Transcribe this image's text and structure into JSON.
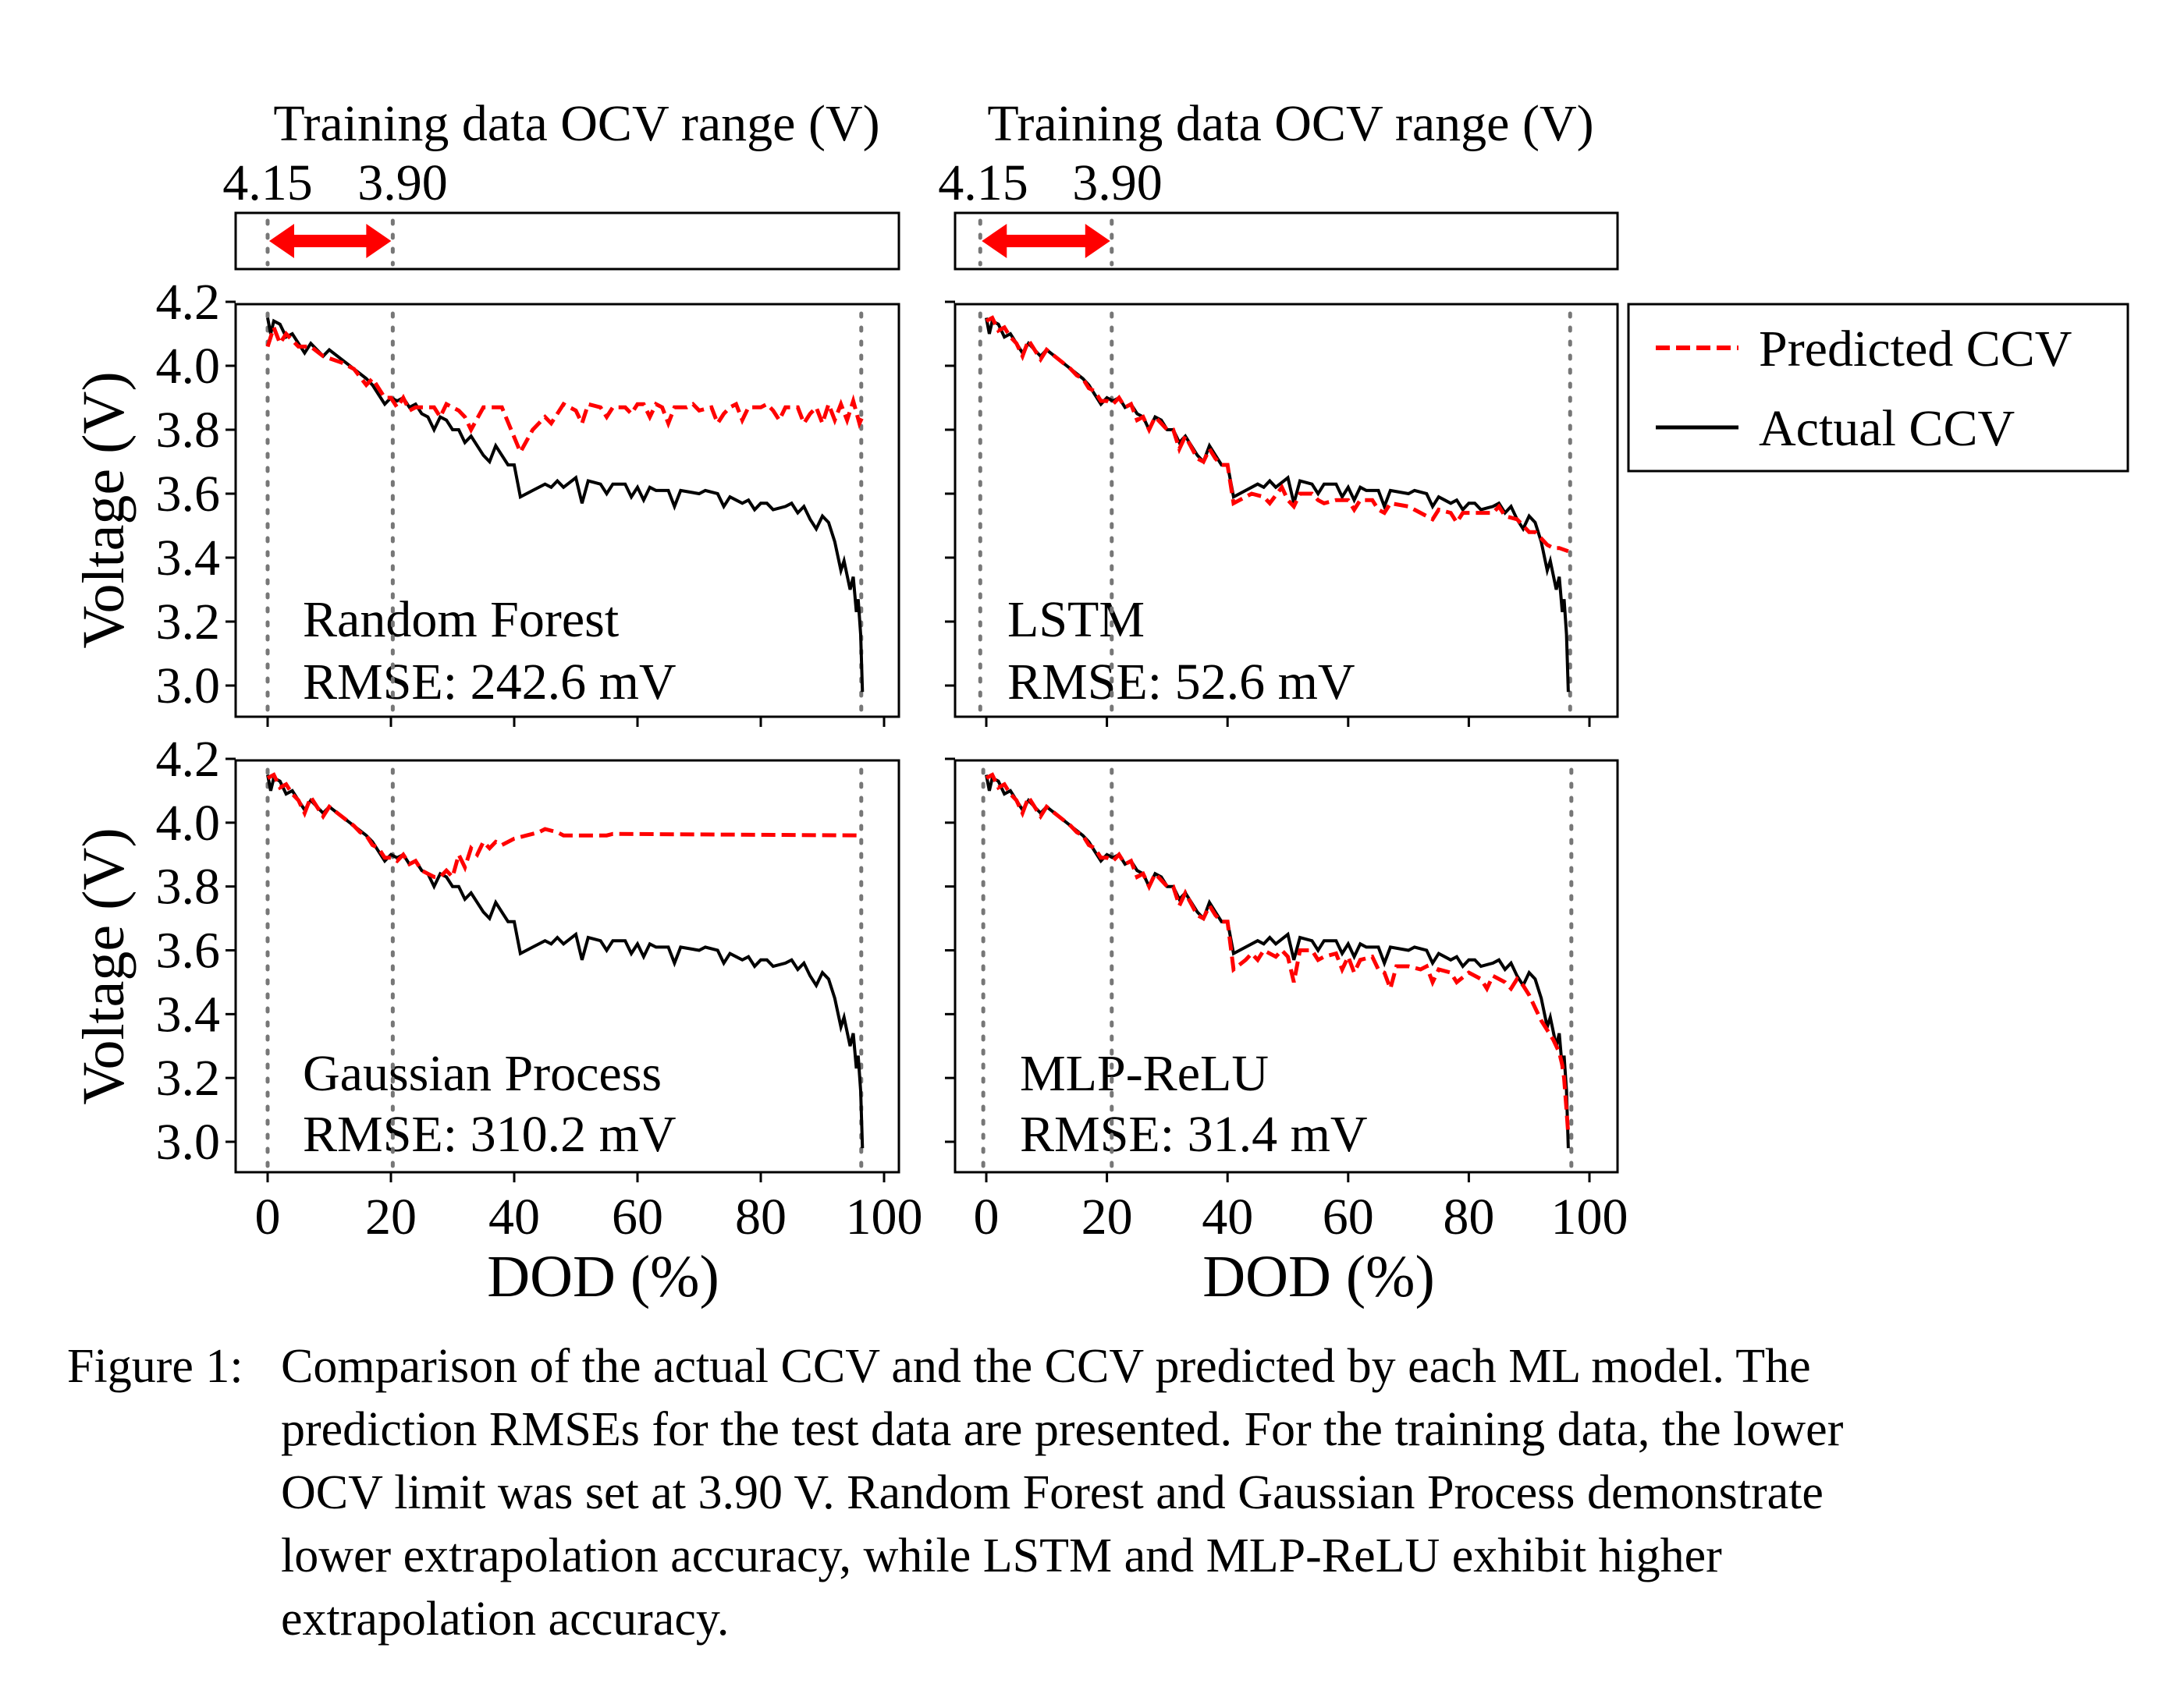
{
  "chart_data": {
    "type": "line",
    "strip_title": "Training data OCV range (V)",
    "strip_labels": [
      "4.15",
      "3.90"
    ],
    "xlabel": "DOD (%)",
    "ylabel": "Voltage (V)",
    "xlim": [
      -5,
      105
    ],
    "ylim": [
      2.93,
      4.21
    ],
    "xticks": [
      0,
      20,
      40,
      60,
      80,
      100
    ],
    "xtick_labels": [
      "0",
      "20",
      "40",
      "60",
      "80",
      "100"
    ],
    "yticks": [
      3.0,
      3.2,
      3.4,
      3.6,
      3.8,
      4.0,
      4.2
    ],
    "ytick_labels": [
      "3.0",
      "3.2",
      "3.4",
      "3.6",
      "3.8",
      "4.0",
      "4.2"
    ],
    "legend": {
      "placement": "right of top-right panel",
      "entries": [
        {
          "label": "Predicted CCV",
          "color": "#ff0000",
          "style": "dashed"
        },
        {
          "label": "Actual CCV",
          "color": "#000000",
          "style": "solid"
        }
      ]
    },
    "reference_line_color": "#777777",
    "arrow_color": "#ff0000",
    "actual": {
      "x": [
        0,
        0.5,
        1,
        2,
        3,
        4,
        6,
        7,
        9,
        10,
        12,
        14,
        16,
        17,
        18,
        19,
        20,
        21,
        22,
        23,
        24,
        25,
        26,
        27,
        28,
        29,
        30,
        31,
        32,
        33,
        35,
        36,
        37,
        38,
        39,
        40,
        41,
        43,
        45,
        46,
        47,
        48,
        50,
        51,
        52,
        54,
        55,
        56,
        58,
        59,
        60,
        61,
        62,
        63,
        65,
        66,
        67,
        70,
        71,
        73,
        74,
        75,
        76,
        77,
        78,
        79,
        80,
        81,
        82,
        84,
        85,
        86,
        87,
        88,
        89,
        90,
        91,
        92,
        93,
        93.5,
        94.5,
        95,
        95.5,
        95.8,
        96.2,
        96.5
      ],
      "y": [
        4.15,
        4.1,
        4.14,
        4.13,
        4.09,
        4.1,
        4.04,
        4.07,
        4.03,
        4.05,
        4.02,
        3.99,
        3.96,
        3.94,
        3.91,
        3.88,
        3.9,
        3.89,
        3.9,
        3.87,
        3.88,
        3.85,
        3.84,
        3.8,
        3.84,
        3.83,
        3.8,
        3.8,
        3.76,
        3.78,
        3.72,
        3.7,
        3.75,
        3.72,
        3.69,
        3.69,
        3.59,
        3.61,
        3.63,
        3.62,
        3.64,
        3.62,
        3.65,
        3.57,
        3.64,
        3.63,
        3.6,
        3.63,
        3.63,
        3.59,
        3.62,
        3.58,
        3.62,
        3.61,
        3.61,
        3.56,
        3.61,
        3.6,
        3.61,
        3.6,
        3.56,
        3.59,
        3.58,
        3.57,
        3.58,
        3.55,
        3.57,
        3.57,
        3.55,
        3.56,
        3.57,
        3.54,
        3.56,
        3.52,
        3.49,
        3.53,
        3.51,
        3.45,
        3.36,
        3.39,
        3.3,
        3.34,
        3.23,
        3.27,
        3.16,
        2.98
      ]
    },
    "panels": [
      {
        "model": "Random Forest",
        "rmse": "RMSE: 242.6 mV",
        "train_lines": [
          0,
          20.3,
          96.3
        ],
        "predicted": {
          "x": [
            0,
            1,
            2,
            3,
            5,
            7,
            9,
            12,
            14,
            16,
            17,
            19,
            20,
            21,
            22,
            23,
            24,
            25,
            27,
            28,
            29,
            31,
            32,
            33,
            35,
            37,
            38,
            41,
            43,
            44,
            45,
            46,
            48,
            50,
            51,
            52,
            54,
            55,
            56,
            58,
            59,
            60,
            61,
            62,
            63,
            64,
            65,
            66,
            68,
            69,
            70,
            72,
            73,
            74,
            75,
            76,
            77,
            78,
            80,
            81,
            82,
            83,
            84,
            86,
            87,
            88,
            89,
            90,
            91,
            92,
            93,
            94,
            95,
            96,
            96.5
          ],
          "y": [
            4.06,
            4.12,
            4.07,
            4.1,
            4.06,
            4.06,
            4.03,
            4.01,
            3.99,
            3.94,
            3.96,
            3.9,
            3.9,
            3.87,
            3.9,
            3.86,
            3.87,
            3.87,
            3.87,
            3.84,
            3.88,
            3.86,
            3.84,
            3.8,
            3.87,
            3.87,
            3.87,
            3.73,
            3.8,
            3.82,
            3.84,
            3.82,
            3.88,
            3.86,
            3.82,
            3.88,
            3.87,
            3.84,
            3.87,
            3.87,
            3.85,
            3.88,
            3.88,
            3.84,
            3.88,
            3.87,
            3.82,
            3.87,
            3.87,
            3.88,
            3.86,
            3.87,
            3.82,
            3.85,
            3.87,
            3.88,
            3.83,
            3.87,
            3.87,
            3.88,
            3.86,
            3.83,
            3.87,
            3.87,
            3.82,
            3.85,
            3.87,
            3.82,
            3.88,
            3.83,
            3.88,
            3.83,
            3.89,
            3.82,
            3.84
          ]
        }
      },
      {
        "model": "LSTM",
        "rmse": "RMSE: 52.6 mV",
        "train_lines": [
          -1,
          20.8,
          96.8
        ],
        "predicted": {
          "x": [
            0,
            1,
            2,
            3,
            4,
            5,
            6,
            7,
            9,
            10,
            12,
            14,
            15,
            16,
            17,
            18,
            19,
            20,
            21,
            22,
            23,
            24,
            25,
            26,
            27,
            28,
            29,
            30,
            31,
            32,
            33,
            35,
            36,
            37,
            38,
            39,
            40,
            41,
            43,
            44,
            46,
            47,
            49,
            50,
            51,
            52,
            54,
            55,
            56,
            58,
            60,
            61,
            62,
            64,
            65,
            66,
            67,
            70,
            71,
            73,
            74,
            75,
            77,
            78,
            79,
            82,
            84,
            85,
            86,
            88,
            89,
            90,
            91,
            92,
            93,
            94,
            95,
            96.5
          ],
          "y": [
            4.14,
            4.15,
            4.11,
            4.12,
            4.09,
            4.07,
            4.03,
            4.08,
            4.02,
            4.05,
            4.02,
            3.99,
            3.97,
            3.96,
            3.93,
            3.92,
            3.89,
            3.89,
            3.88,
            3.9,
            3.87,
            3.88,
            3.83,
            3.84,
            3.8,
            3.84,
            3.82,
            3.8,
            3.8,
            3.74,
            3.78,
            3.71,
            3.7,
            3.74,
            3.71,
            3.69,
            3.69,
            3.57,
            3.59,
            3.6,
            3.59,
            3.57,
            3.62,
            3.58,
            3.56,
            3.6,
            3.6,
            3.58,
            3.57,
            3.58,
            3.58,
            3.55,
            3.58,
            3.58,
            3.55,
            3.54,
            3.57,
            3.56,
            3.55,
            3.53,
            3.52,
            3.55,
            3.54,
            3.51,
            3.54,
            3.54,
            3.54,
            3.56,
            3.53,
            3.52,
            3.5,
            3.48,
            3.48,
            3.46,
            3.44,
            3.43,
            3.43,
            3.42
          ]
        }
      },
      {
        "model": "Gaussian Process",
        "rmse": "RMSE: 310.2 mV",
        "train_lines": [
          0,
          20.3,
          96.3
        ],
        "predicted": {
          "x": [
            0,
            1,
            2,
            3,
            4,
            5,
            6,
            7,
            9,
            10,
            12,
            14,
            15,
            16,
            17,
            18,
            19,
            20,
            21,
            22,
            23,
            24,
            25,
            26,
            27,
            28,
            29,
            30,
            31,
            32,
            33,
            34,
            35,
            36,
            37,
            38,
            40,
            42,
            44,
            45,
            47,
            48,
            55,
            56,
            96.5
          ],
          "y": [
            4.14,
            4.15,
            4.11,
            4.12,
            4.09,
            4.07,
            4.03,
            4.08,
            4.02,
            4.05,
            4.02,
            3.99,
            3.97,
            3.96,
            3.93,
            3.92,
            3.89,
            3.89,
            3.88,
            3.9,
            3.87,
            3.88,
            3.85,
            3.84,
            3.83,
            3.83,
            3.85,
            3.83,
            3.9,
            3.86,
            3.92,
            3.9,
            3.94,
            3.92,
            3.94,
            3.93,
            3.95,
            3.96,
            3.97,
            3.98,
            3.97,
            3.96,
            3.96,
            3.965,
            3.96
          ]
        }
      },
      {
        "model": "MLP-ReLU",
        "rmse": "RMSE: 31.4 mV",
        "train_lines": [
          -0.5,
          20.8,
          97
        ],
        "predicted": {
          "x": [
            0,
            1,
            2,
            3,
            4,
            5,
            6,
            7,
            9,
            10,
            12,
            14,
            15,
            16,
            17,
            18,
            19,
            20,
            21,
            22,
            23,
            24,
            25,
            26,
            27,
            28,
            29,
            30,
            31,
            32,
            33,
            35,
            36,
            37,
            38,
            39,
            40,
            41,
            43,
            44,
            45,
            46,
            48,
            49,
            50,
            51,
            52,
            54,
            55,
            56,
            58,
            59,
            60,
            61,
            62,
            64,
            65,
            66,
            67,
            68,
            70,
            72,
            73,
            74,
            75,
            77,
            78,
            80,
            82,
            83,
            84,
            86,
            87,
            88,
            89,
            90,
            91,
            92,
            93,
            94,
            95,
            95.5,
            95.8,
            96.2,
            96.5
          ],
          "y": [
            4.14,
            4.15,
            4.11,
            4.12,
            4.09,
            4.07,
            4.03,
            4.08,
            4.02,
            4.05,
            4.02,
            3.99,
            3.97,
            3.96,
            3.93,
            3.92,
            3.89,
            3.89,
            3.88,
            3.9,
            3.87,
            3.88,
            3.83,
            3.84,
            3.8,
            3.84,
            3.82,
            3.8,
            3.8,
            3.74,
            3.78,
            3.71,
            3.7,
            3.74,
            3.71,
            3.69,
            3.69,
            3.54,
            3.57,
            3.59,
            3.57,
            3.6,
            3.58,
            3.6,
            3.58,
            3.5,
            3.6,
            3.6,
            3.57,
            3.58,
            3.59,
            3.54,
            3.58,
            3.53,
            3.57,
            3.58,
            3.54,
            3.53,
            3.48,
            3.55,
            3.55,
            3.54,
            3.55,
            3.5,
            3.54,
            3.53,
            3.5,
            3.53,
            3.51,
            3.48,
            3.52,
            3.5,
            3.48,
            3.51,
            3.49,
            3.46,
            3.42,
            3.38,
            3.35,
            3.32,
            3.28,
            3.24,
            3.2,
            3.1,
            3.02
          ]
        }
      }
    ]
  },
  "caption": {
    "label": "Figure 1:",
    "lines": [
      "Comparison of the actual CCV and the CCV predicted by each ML model. The",
      "prediction RMSEs for the test data are presented. For the training data, the lower",
      "OCV limit was set at 3.90 V. Random Forest and Gaussian Process demonstrate",
      "lower extrapolation accuracy, while LSTM and MLP-ReLU exhibit higher",
      "extrapolation accuracy."
    ]
  }
}
